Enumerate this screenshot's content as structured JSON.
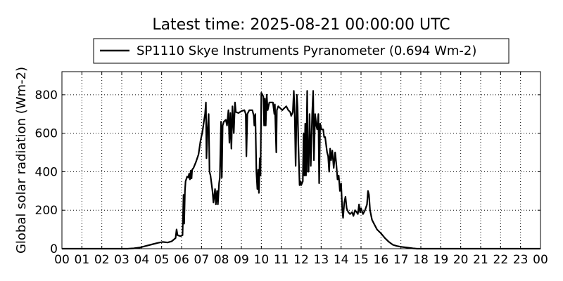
{
  "chart_data": {
    "type": "line",
    "title": "Latest time: 2025-08-21 00:00:00 UTC",
    "xlabel": "",
    "ylabel": "Global solar radiation (Wm-2)",
    "legend": {
      "placement": "top-center",
      "entries": [
        "SP1110 Skye Instruments Pyranometer (0.694 Wm-2)"
      ]
    },
    "grid": true,
    "xlim": [
      0,
      24
    ],
    "ylim": [
      0,
      920
    ],
    "x_ticks": [
      "00",
      "01",
      "02",
      "03",
      "04",
      "05",
      "06",
      "07",
      "08",
      "09",
      "10",
      "11",
      "12",
      "13",
      "14",
      "15",
      "16",
      "17",
      "18",
      "19",
      "20",
      "21",
      "22",
      "23",
      "00"
    ],
    "y_ticks": [
      0,
      200,
      400,
      600,
      800
    ],
    "series": [
      {
        "name": "SP1110 Skye Instruments Pyranometer (0.694 Wm-2)",
        "color": "#000000",
        "points": [
          [
            0,
            0
          ],
          [
            3.3,
            0
          ],
          [
            3.6,
            2
          ],
          [
            3.9,
            6
          ],
          [
            4.2,
            14
          ],
          [
            4.5,
            22
          ],
          [
            4.8,
            30
          ],
          [
            5.05,
            35
          ],
          [
            5.3,
            32
          ],
          [
            5.5,
            38
          ],
          [
            5.7,
            55
          ],
          [
            5.75,
            100
          ],
          [
            5.8,
            70
          ],
          [
            5.95,
            65
          ],
          [
            6.05,
            70
          ],
          [
            6.1,
            280
          ],
          [
            6.13,
            130
          ],
          [
            6.17,
            300
          ],
          [
            6.2,
            350
          ],
          [
            6.28,
            375
          ],
          [
            6.33,
            370
          ],
          [
            6.38,
            390
          ],
          [
            6.42,
            360
          ],
          [
            6.46,
            405
          ],
          [
            6.5,
            365
          ],
          [
            6.53,
            410
          ],
          [
            6.6,
            420
          ],
          [
            6.72,
            450
          ],
          [
            6.85,
            490
          ],
          [
            6.95,
            560
          ],
          [
            7.05,
            610
          ],
          [
            7.12,
            660
          ],
          [
            7.18,
            700
          ],
          [
            7.22,
            760
          ],
          [
            7.25,
            470
          ],
          [
            7.3,
            610
          ],
          [
            7.36,
            700
          ],
          [
            7.4,
            400
          ],
          [
            7.45,
            380
          ],
          [
            7.55,
            300
          ],
          [
            7.6,
            240
          ],
          [
            7.68,
            310
          ],
          [
            7.72,
            230
          ],
          [
            7.78,
            300
          ],
          [
            7.82,
            230
          ],
          [
            7.88,
            340
          ],
          [
            7.92,
            370
          ],
          [
            7.98,
            660
          ],
          [
            8.02,
            370
          ],
          [
            8.06,
            640
          ],
          [
            8.12,
            660
          ],
          [
            8.22,
            670
          ],
          [
            8.28,
            640
          ],
          [
            8.35,
            720
          ],
          [
            8.4,
            550
          ],
          [
            8.45,
            705
          ],
          [
            8.5,
            520
          ],
          [
            8.55,
            740
          ],
          [
            8.62,
            600
          ],
          [
            8.68,
            760
          ],
          [
            8.72,
            710
          ],
          [
            8.85,
            705
          ],
          [
            9.0,
            715
          ],
          [
            9.15,
            720
          ],
          [
            9.22,
            700
          ],
          [
            9.25,
            480
          ],
          [
            9.3,
            700
          ],
          [
            9.4,
            720
          ],
          [
            9.55,
            720
          ],
          [
            9.62,
            690
          ],
          [
            9.65,
            640
          ],
          [
            9.7,
            700
          ],
          [
            9.75,
            400
          ],
          [
            9.8,
            310
          ],
          [
            9.84,
            410
          ],
          [
            9.88,
            290
          ],
          [
            9.92,
            470
          ],
          [
            9.96,
            380
          ],
          [
            10.0,
            810
          ],
          [
            10.06,
            800
          ],
          [
            10.1,
            790
          ],
          [
            10.14,
            640
          ],
          [
            10.18,
            780
          ],
          [
            10.22,
            640
          ],
          [
            10.27,
            800
          ],
          [
            10.32,
            720
          ],
          [
            10.4,
            760
          ],
          [
            10.5,
            760
          ],
          [
            10.58,
            760
          ],
          [
            10.65,
            700
          ],
          [
            10.68,
            750
          ],
          [
            10.75,
            500
          ],
          [
            10.78,
            720
          ],
          [
            10.85,
            740
          ],
          [
            10.95,
            730
          ],
          [
            11.05,
            720
          ],
          [
            11.15,
            730
          ],
          [
            11.25,
            740
          ],
          [
            11.35,
            720
          ],
          [
            11.45,
            710
          ],
          [
            11.5,
            690
          ],
          [
            11.58,
            710
          ],
          [
            11.63,
            820
          ],
          [
            11.68,
            680
          ],
          [
            11.72,
            430
          ],
          [
            11.78,
            800
          ],
          [
            11.82,
            730
          ],
          [
            11.86,
            540
          ],
          [
            11.92,
            330
          ],
          [
            11.97,
            350
          ],
          [
            12.0,
            330
          ],
          [
            12.08,
            350
          ],
          [
            12.12,
            600
          ],
          [
            12.16,
            380
          ],
          [
            12.2,
            650
          ],
          [
            12.24,
            380
          ],
          [
            12.3,
            820
          ],
          [
            12.33,
            400
          ],
          [
            12.37,
            400
          ],
          [
            12.42,
            700
          ],
          [
            12.48,
            430
          ],
          [
            12.55,
            700
          ],
          [
            12.6,
            820
          ],
          [
            12.64,
            460
          ],
          [
            12.7,
            700
          ],
          [
            12.76,
            640
          ],
          [
            12.8,
            620
          ],
          [
            12.86,
            700
          ],
          [
            12.9,
            340
          ],
          [
            12.95,
            650
          ],
          [
            13.02,
            620
          ],
          [
            13.1,
            620
          ],
          [
            13.15,
            580
          ],
          [
            13.2,
            580
          ],
          [
            13.3,
            500
          ],
          [
            13.35,
            480
          ],
          [
            13.4,
            400
          ],
          [
            13.45,
            520
          ],
          [
            13.5,
            460
          ],
          [
            13.56,
            510
          ],
          [
            13.63,
            420
          ],
          [
            13.7,
            500
          ],
          [
            13.76,
            440
          ],
          [
            13.82,
            360
          ],
          [
            13.88,
            380
          ],
          [
            13.94,
            300
          ],
          [
            14.0,
            340
          ],
          [
            14.06,
            200
          ],
          [
            14.1,
            160
          ],
          [
            14.16,
            240
          ],
          [
            14.22,
            270
          ],
          [
            14.28,
            210
          ],
          [
            14.36,
            190
          ],
          [
            14.45,
            180
          ],
          [
            14.55,
            190
          ],
          [
            14.62,
            170
          ],
          [
            14.7,
            200
          ],
          [
            14.78,
            190
          ],
          [
            14.84,
            180
          ],
          [
            14.9,
            230
          ],
          [
            14.95,
            190
          ],
          [
            15.0,
            210
          ],
          [
            15.1,
            180
          ],
          [
            15.2,
            200
          ],
          [
            15.3,
            230
          ],
          [
            15.35,
            300
          ],
          [
            15.4,
            280
          ],
          [
            15.45,
            200
          ],
          [
            15.55,
            150
          ],
          [
            15.65,
            130
          ],
          [
            15.8,
            100
          ],
          [
            16.0,
            80
          ],
          [
            16.2,
            55
          ],
          [
            16.4,
            35
          ],
          [
            16.6,
            20
          ],
          [
            16.8,
            14
          ],
          [
            17.0,
            10
          ],
          [
            17.3,
            6
          ],
          [
            17.6,
            2
          ],
          [
            17.8,
            0
          ],
          [
            24,
            0
          ]
        ]
      }
    ]
  }
}
